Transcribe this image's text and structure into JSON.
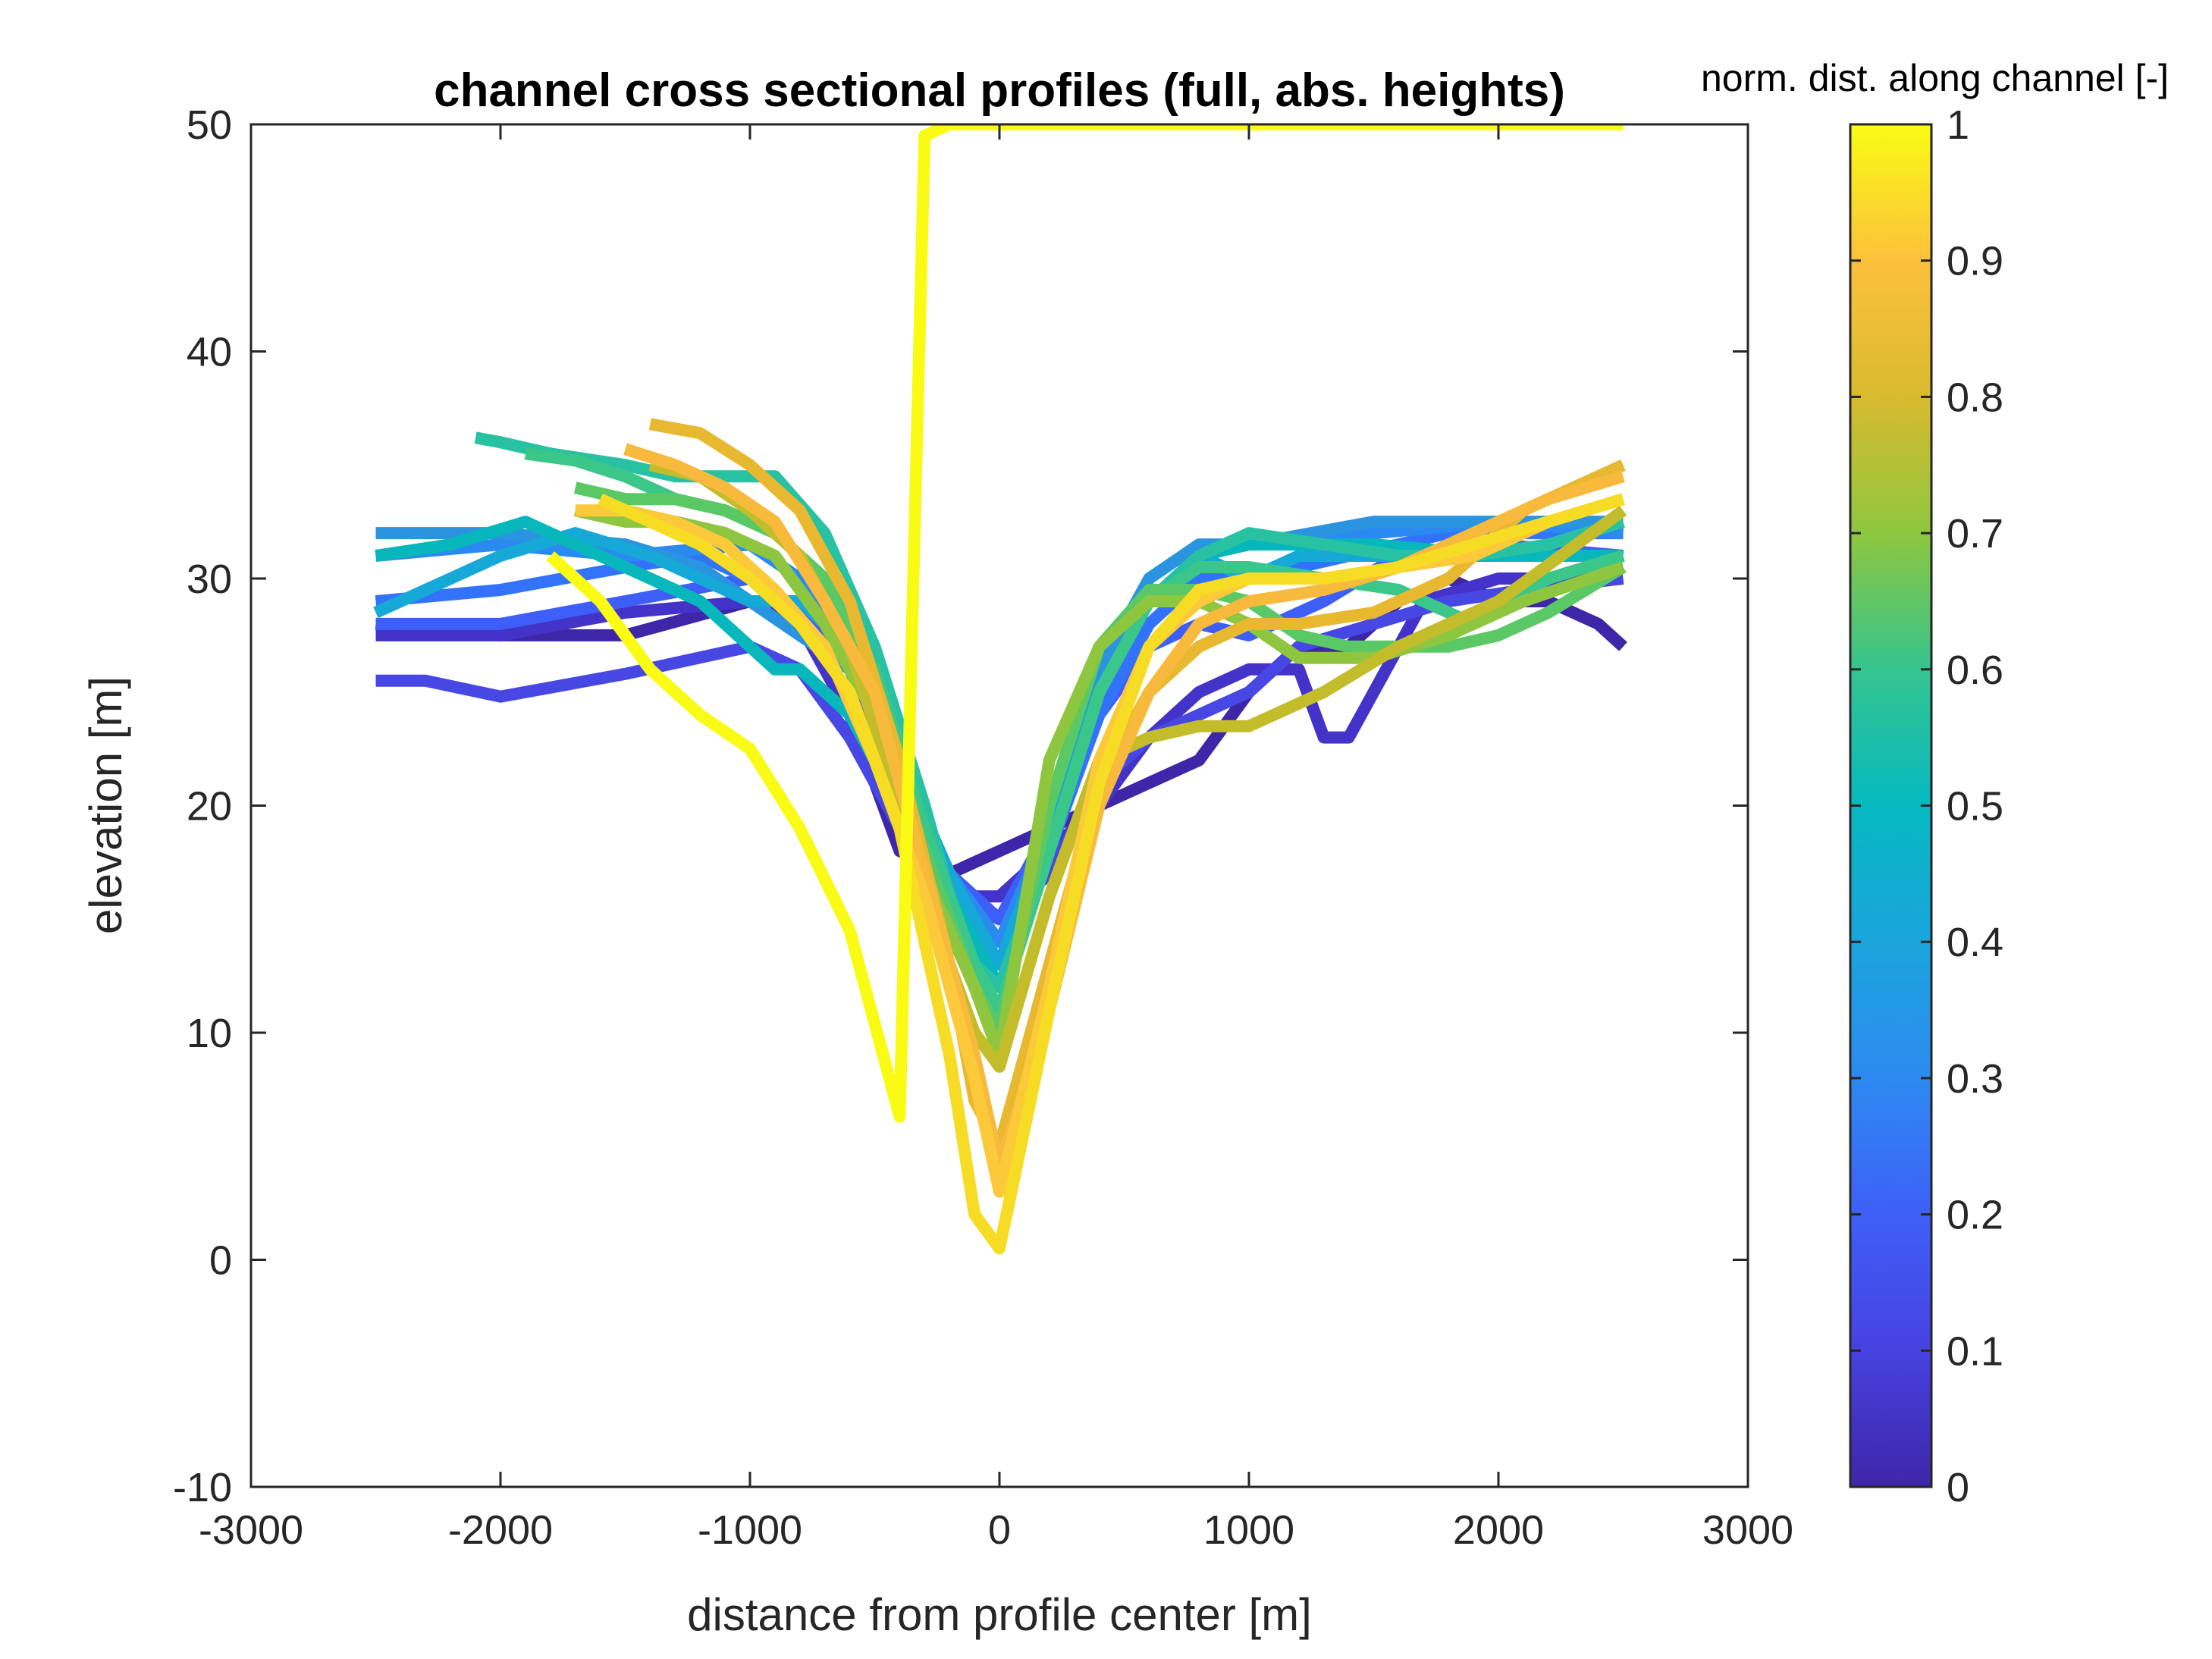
{
  "chart_data": {
    "type": "line",
    "title": "channel cross sectional profiles (full, abs. heights)",
    "xlabel": "distance from profile center [m]",
    "ylabel": "elevation [m]",
    "xlim": [
      -3000,
      3000
    ],
    "ylim": [
      -10,
      50
    ],
    "x_ticks": [
      -3000,
      -2000,
      -1000,
      0,
      1000,
      2000,
      3000
    ],
    "y_ticks": [
      -10,
      0,
      10,
      20,
      30,
      40,
      50
    ],
    "x_tick_labels": [
      "-3000",
      "-2000",
      "-1000",
      "0",
      "1000",
      "2000",
      "3000"
    ],
    "y_tick_labels": [
      "-10",
      "0",
      "10",
      "20",
      "30",
      "40",
      "50"
    ],
    "grid": false,
    "colorbar": {
      "label": "norm. dist. along channel [-]",
      "range": [
        0,
        1
      ],
      "ticks": [
        0,
        0.1,
        0.2,
        0.3,
        0.4,
        0.5,
        0.6,
        0.7,
        0.8,
        0.9,
        1
      ],
      "tick_labels": [
        "0",
        "0.1",
        "0.2",
        "0.3",
        "0.4",
        "0.5",
        "0.6",
        "0.7",
        "0.8",
        "0.9",
        "1"
      ],
      "colormap": "parula"
    },
    "series": [
      {
        "t": 0.0,
        "color": "#3e26a8",
        "x": [
          -2500,
          -2000,
          -1500,
          -1000,
          -800,
          -600,
          -400,
          -200,
          0,
          200,
          400,
          600,
          800,
          1000,
          1200,
          1400,
          1600,
          1800,
          2000,
          2200,
          2400,
          2500
        ],
        "y": [
          28,
          27.5,
          27.5,
          29,
          28,
          24,
          18,
          17,
          18,
          19,
          20,
          21,
          22,
          25,
          27,
          27,
          29,
          30,
          29,
          29,
          28,
          27
        ]
      },
      {
        "t": 0.05,
        "color": "#4433c9",
        "x": [
          -2500,
          -2000,
          -1500,
          -1000,
          -800,
          -600,
          -400,
          -200,
          0,
          200,
          400,
          600,
          800,
          1000,
          1200,
          1300,
          1400,
          1500,
          1700,
          2000,
          2300,
          2500
        ],
        "y": [
          27.5,
          27.5,
          28.5,
          29,
          28,
          24,
          19,
          16,
          16,
          18,
          20,
          23,
          25,
          26,
          26,
          23,
          23,
          25,
          29,
          30,
          30,
          30.5
        ]
      },
      {
        "t": 0.1,
        "color": "#4747e4",
        "x": [
          -2500,
          -2300,
          -2000,
          -1500,
          -1000,
          -800,
          -600,
          -400,
          -200,
          0,
          200,
          400,
          600,
          800,
          1000,
          1200,
          1500,
          1800,
          2100,
          2500
        ],
        "y": [
          25.5,
          25.5,
          24.8,
          25.8,
          27,
          26,
          23,
          19,
          16,
          15,
          17,
          21,
          23,
          24,
          25,
          27,
          28,
          29,
          29.5,
          30
        ]
      },
      {
        "t": 0.15,
        "color": "#3e5ff7",
        "x": [
          -2500,
          -2000,
          -1500,
          -1000,
          -800,
          -600,
          -400,
          -200,
          0,
          200,
          400,
          600,
          800,
          1000,
          1300,
          1600,
          2000,
          2500
        ],
        "y": [
          28,
          28,
          29,
          30,
          28.5,
          26,
          21,
          17,
          15,
          19,
          24,
          27,
          28,
          27.5,
          29,
          31,
          31.5,
          31
        ]
      },
      {
        "t": 0.2,
        "color": "#3373fb",
        "x": [
          -2500,
          -2000,
          -1500,
          -1200,
          -1000,
          -800,
          -600,
          -400,
          -200,
          0,
          200,
          400,
          600,
          800,
          1000,
          1400,
          1800,
          2200,
          2500
        ],
        "y": [
          29,
          29.5,
          30.5,
          31,
          30,
          28,
          26,
          22,
          17,
          14,
          18,
          24,
          28,
          30,
          30,
          31,
          32,
          32,
          32
        ]
      },
      {
        "t": 0.25,
        "color": "#2a8af0",
        "x": [
          -2500,
          -2000,
          -1500,
          -1000,
          -800,
          -600,
          -400,
          -200,
          0,
          200,
          400,
          600,
          800,
          1000,
          1500,
          2000,
          2500
        ],
        "y": [
          31,
          31.5,
          31,
          31.5,
          30,
          27,
          22,
          17,
          14,
          19,
          25,
          29,
          31,
          31.5,
          32,
          32.5,
          32
        ]
      },
      {
        "t": 0.3,
        "color": "#2a94e0",
        "x": [
          -2500,
          -2000,
          -1500,
          -1200,
          -1000,
          -800,
          -600,
          -400,
          -200,
          0,
          200,
          400,
          600,
          800,
          1000,
          1500,
          2000,
          2500
        ],
        "y": [
          32,
          32,
          31.5,
          30.5,
          29,
          27.5,
          26,
          22,
          17,
          13,
          19,
          26,
          30,
          31.5,
          31.5,
          32.5,
          32.5,
          32.5
        ]
      },
      {
        "t": 0.4,
        "color": "#16a9d8",
        "x": [
          -2500,
          -2200,
          -2000,
          -1700,
          -1400,
          -1200,
          -1000,
          -800,
          -600,
          -400,
          -200,
          0,
          200,
          400,
          600,
          800,
          1000,
          1200,
          1500,
          1800,
          2000,
          2500
        ],
        "y": [
          28.5,
          30,
          31,
          32,
          31,
          30,
          29,
          29,
          27,
          22,
          17,
          13,
          19,
          25,
          29,
          31,
          30,
          31,
          31,
          31,
          31,
          31
        ]
      },
      {
        "t": 0.5,
        "color": "#08b7bc",
        "x": [
          -2500,
          -2200,
          -1900,
          -1700,
          -1400,
          -1200,
          -1000,
          -900,
          -800,
          -600,
          -400,
          -200,
          0,
          200,
          400,
          600,
          800,
          1000,
          1500,
          2000,
          2500
        ],
        "y": [
          31,
          31.5,
          32.5,
          31.5,
          30,
          29,
          27,
          26,
          26,
          24,
          20,
          16,
          12,
          18,
          25,
          29,
          31,
          31.5,
          31.5,
          31,
          31
        ]
      },
      {
        "t": 0.55,
        "color": "#28c2a2",
        "x": [
          -2100,
          -2000,
          -1800,
          -1500,
          -1300,
          -1100,
          -900,
          -700,
          -500,
          -300,
          -200,
          -100,
          0,
          200,
          400,
          600,
          800,
          1000,
          1300,
          1600,
          1900,
          2200,
          2500
        ],
        "y": [
          36.2,
          36,
          35.5,
          35,
          34.5,
          34.5,
          34.5,
          32,
          27,
          20,
          16,
          13,
          12,
          18,
          25,
          29,
          31,
          32,
          31.5,
          31,
          31,
          31.5,
          32.5
        ]
      },
      {
        "t": 0.6,
        "color": "#3bc68a",
        "x": [
          -1900,
          -1700,
          -1500,
          -1300,
          -1100,
          -900,
          -700,
          -500,
          -300,
          -100,
          0,
          200,
          400,
          600,
          800,
          1000,
          1300,
          1600,
          1900,
          2200,
          2500
        ],
        "y": [
          35.5,
          35.2,
          34.5,
          33.5,
          33,
          32,
          30,
          26,
          19,
          13,
          11,
          18,
          25,
          29,
          30.5,
          30.5,
          30,
          29.5,
          28,
          30,
          31
        ]
      },
      {
        "t": 0.65,
        "color": "#5bc866",
        "x": [
          -1700,
          -1500,
          -1300,
          -1100,
          -900,
          -700,
          -500,
          -300,
          -100,
          0,
          200,
          400,
          600,
          800,
          1000,
          1200,
          1400,
          1600,
          1800,
          2000,
          2200,
          2500
        ],
        "y": [
          34,
          33.5,
          33.5,
          33,
          32,
          30,
          25,
          18,
          12,
          10,
          20,
          27,
          29.5,
          29.5,
          29,
          27.5,
          27,
          27,
          27,
          27.5,
          28.5,
          30.5
        ]
      },
      {
        "t": 0.7,
        "color": "#8ec63f",
        "x": [
          -1700,
          -1500,
          -1300,
          -1100,
          -900,
          -700,
          -500,
          -300,
          -100,
          0,
          200,
          400,
          600,
          800,
          1000,
          1200,
          1500,
          1800,
          2100,
          2500
        ],
        "y": [
          33,
          32.5,
          32.5,
          32,
          31,
          28,
          24,
          17,
          12,
          9,
          22,
          27,
          29,
          29,
          28,
          26.5,
          26.5,
          27.5,
          29,
          30.5
        ]
      },
      {
        "t": 0.75,
        "color": "#c3bd2c",
        "x": [
          -1400,
          -1200,
          -1000,
          -800,
          -600,
          -400,
          -200,
          -100,
          0,
          200,
          400,
          600,
          800,
          1000,
          1300,
          1600,
          2000,
          2500
        ],
        "y": [
          35,
          34.5,
          33,
          31,
          27,
          20,
          13,
          10,
          8.5,
          16,
          22,
          23,
          23.5,
          23.5,
          25,
          27,
          29,
          33
        ]
      },
      {
        "t": 0.8,
        "color": "#e8b930",
        "x": [
          -1400,
          -1200,
          -1000,
          -800,
          -600,
          -400,
          -200,
          -100,
          0,
          200,
          400,
          600,
          800,
          1000,
          1200,
          1500,
          1800,
          2100,
          2300,
          2500
        ],
        "y": [
          36.8,
          36.4,
          35,
          33,
          29,
          22,
          13,
          7,
          5,
          13,
          21,
          25,
          27,
          28,
          28,
          28.5,
          30,
          33,
          34,
          35
        ]
      },
      {
        "t": 0.85,
        "color": "#f7ba3d",
        "x": [
          -1500,
          -1300,
          -1100,
          -900,
          -700,
          -500,
          -300,
          -100,
          0,
          200,
          400,
          600,
          800,
          1000,
          1300,
          1600,
          1900,
          2200,
          2500
        ],
        "y": [
          35.7,
          35,
          34,
          32.5,
          29,
          25,
          17,
          9,
          4,
          11,
          20,
          25,
          28,
          29,
          29.5,
          30.5,
          32,
          33.5,
          34.5
        ]
      },
      {
        "t": 0.9,
        "color": "#fbc93a",
        "x": [
          -1700,
          -1500,
          -1300,
          -1100,
          -900,
          -700,
          -500,
          -300,
          -100,
          0,
          200,
          400,
          600,
          800,
          1000,
          1300,
          1600,
          1900,
          2200,
          2500
        ],
        "y": [
          33,
          33,
          32.5,
          31.5,
          29.5,
          27,
          22,
          16,
          8,
          3,
          12,
          22,
          27,
          29,
          30,
          30,
          30.5,
          31,
          32.5,
          33.5
        ]
      },
      {
        "t": 0.95,
        "color": "#f6dc24",
        "x": [
          -1600,
          -1400,
          -1200,
          -1000,
          -800,
          -600,
          -400,
          -200,
          -100,
          0,
          200,
          400,
          600,
          800,
          1000,
          1300,
          1600,
          1900,
          2200,
          2500
        ],
        "y": [
          33.5,
          32.5,
          31.5,
          30,
          28,
          25,
          19,
          9,
          2,
          0.5,
          11,
          21,
          27,
          29.5,
          30,
          30,
          30.5,
          31.5,
          32.5,
          33.5
        ]
      },
      {
        "t": 1.0,
        "color": "#f9fb15",
        "x": [
          -1800,
          -1600,
          -1400,
          -1200,
          -1000,
          -800,
          -600,
          -400,
          -300,
          -200,
          0,
          500,
          1000,
          1500,
          2000,
          2500
        ],
        "y": [
          31,
          29,
          26,
          24,
          22.5,
          19,
          14.5,
          6.3,
          49.5,
          50,
          50,
          50,
          50,
          50,
          50,
          50
        ]
      }
    ]
  }
}
